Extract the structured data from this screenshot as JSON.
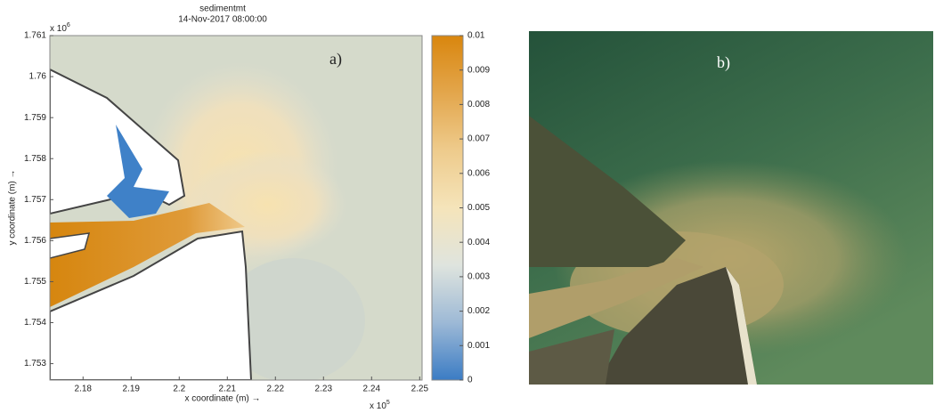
{
  "panel_a": {
    "title": "sedimentmt",
    "subtitle": "14-Nov-2017 08:00:00",
    "label": "a)",
    "x_label": "x coordinate (m) →",
    "y_label": "y coordinate (m) →",
    "x_exponent": "x 10",
    "x_exponent_power": "5",
    "y_exponent": "x 10",
    "y_exponent_power": "6",
    "xlim": [
      2.1731,
      2.2505
    ],
    "xticks": [
      2.18,
      2.19,
      2.2,
      2.21,
      2.22,
      2.23,
      2.24,
      2.25
    ],
    "ylim": [
      1.7526,
      1.761
    ],
    "yticks": [
      1.753,
      1.754,
      1.755,
      1.756,
      1.757,
      1.758,
      1.759,
      1.76,
      1.761
    ],
    "colorbar": {
      "lim": [
        0,
        0.01
      ],
      "ticks": [
        0,
        0.001,
        0.002,
        0.003,
        0.004,
        0.005,
        0.006,
        0.007,
        0.008,
        0.009,
        0.01
      ],
      "colors": [
        "#3b7cc4",
        "#9db9d6",
        "#dfe4de",
        "#f5e4ba",
        "#eecb8c",
        "#e3a64c",
        "#d9860e"
      ]
    }
  },
  "panel_b": {
    "label": "b)"
  }
}
